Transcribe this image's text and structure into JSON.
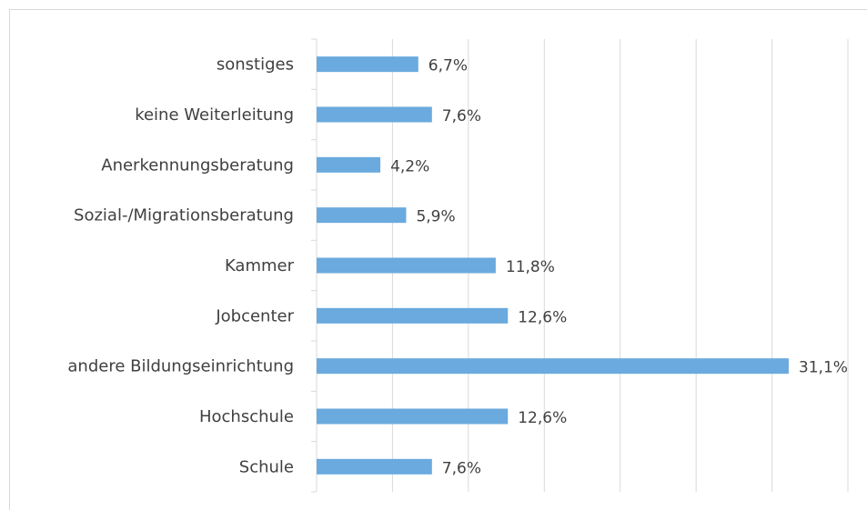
{
  "chart_data": {
    "type": "barh",
    "categories": [
      "Schule",
      "Hochschule",
      "andere Bildungseinrichtung",
      "Jobcenter",
      "Kammer",
      "Sozial-/Migrationsberatung",
      "Anerkennungsberatung",
      "keine Weiterleitung",
      "sonstiges"
    ],
    "values": [
      7.6,
      12.6,
      31.1,
      12.6,
      11.8,
      5.9,
      4.2,
      7.6,
      6.7
    ],
    "value_labels": [
      "7,6%",
      "12,6%",
      "31,1%",
      "12,6%",
      "11,8%",
      "5,9%",
      "4,2%",
      "7,6%",
      "6,7%"
    ],
    "color": "#6aaade",
    "xlim": [
      0,
      35
    ],
    "xticks": [
      0,
      5,
      10,
      15,
      20,
      25,
      30,
      35
    ],
    "grid": true
  }
}
